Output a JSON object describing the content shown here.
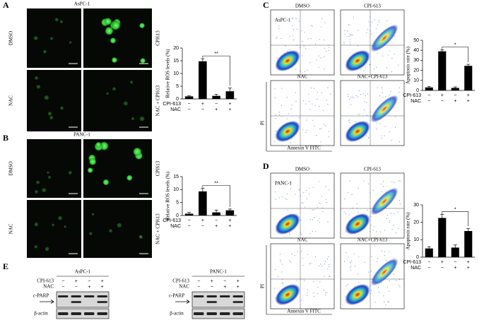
{
  "panels": {
    "A": {
      "label": "A",
      "cell_line": "AsPC-1",
      "rows": [
        "DMSO",
        "NAC"
      ],
      "treatments": [
        "CPI613",
        "NAC + CPI613"
      ]
    },
    "B": {
      "label": "B",
      "cell_line": "PANC-1",
      "rows": [
        "DMSO",
        "NAC"
      ],
      "treatments": [
        "CPI613",
        "NAC + CPI613"
      ]
    },
    "C": {
      "label": "C",
      "cell_line": "AsPC-1",
      "plots": [
        "DMSO",
        "CPI-613",
        "NAC",
        "NAC+CPI-613"
      ],
      "x_label": "Annexin V FITC",
      "y_label": "PI"
    },
    "D": {
      "label": "D",
      "cell_line": "PANC-1",
      "plots": [
        "DMSO",
        "CPI-613",
        "NAC",
        "NAC+CPI-613"
      ],
      "x_label": "Annexin V FITC",
      "y_label": "PI"
    },
    "E": {
      "label": "E",
      "blots": [
        {
          "cell_line": "AsPC-1",
          "conditions": [
            {
              "name": "CPI-613",
              "signs": [
                "−",
                "+",
                "−",
                "+"
              ]
            },
            {
              "name": "NAC",
              "signs": [
                "−",
                "−",
                "+",
                "+"
              ]
            }
          ],
          "bands": [
            "c-PARP",
            "β-actin"
          ]
        },
        {
          "cell_line": "PANC-1",
          "conditions": [
            {
              "name": "CPI-613",
              "signs": [
                "−",
                "+",
                "−",
                "+"
              ]
            },
            {
              "name": "NAC",
              "signs": [
                "−",
                "−",
                "+",
                "+"
              ]
            }
          ],
          "bands": [
            "c-PARP",
            "β-actin"
          ]
        }
      ]
    }
  },
  "chart_data": [
    {
      "type": "bar",
      "y_label": "Relative ROS levels (%)",
      "values": [
        1,
        14.8,
        1.2,
        3
      ],
      "errors": [
        0.2,
        1,
        0.6,
        1.3
      ],
      "color": "#000000",
      "ylim": [
        0,
        20
      ],
      "yticks": [
        0,
        5,
        10,
        15,
        20
      ],
      "annotation": "**",
      "conditions": [
        {
          "name": "CPI-613",
          "signs": [
            "−",
            "+",
            "−",
            "+"
          ]
        },
        {
          "name": "NAC",
          "signs": [
            "−",
            "−",
            "+",
            "+"
          ]
        }
      ]
    },
    {
      "type": "bar",
      "y_label": "Relative ROS levels (%)",
      "values": [
        0.7,
        9.3,
        1.2,
        2
      ],
      "errors": [
        0.5,
        1.2,
        0.9,
        0.5
      ],
      "color": "#000000",
      "ylim": [
        0,
        15
      ],
      "yticks": [
        0,
        5,
        10,
        15
      ],
      "annotation": "**",
      "conditions": [
        {
          "name": "CPI-613",
          "signs": [
            "−",
            "+",
            "−",
            "+"
          ]
        },
        {
          "name": "NAC",
          "signs": [
            "−",
            "−",
            "+",
            "+"
          ]
        }
      ]
    },
    {
      "type": "bar",
      "y_label": "Apoptosis rate (%)",
      "values": [
        3,
        39,
        2.5,
        24.5
      ],
      "errors": [
        1,
        1.5,
        1,
        1.5
      ],
      "color": "#000000",
      "ylim": [
        0,
        50
      ],
      "yticks": [
        0,
        10,
        20,
        30,
        40,
        50
      ],
      "annotation": "*",
      "conditions": [
        {
          "name": "CPI-613",
          "signs": [
            "−",
            "+",
            "−",
            "+"
          ]
        },
        {
          "name": "NAC",
          "signs": [
            "−",
            "−",
            "+",
            "+"
          ]
        }
      ]
    },
    {
      "type": "bar",
      "y_label": "Apoptosis rate (%)",
      "values": [
        5,
        22.5,
        5.5,
        15
      ],
      "errors": [
        1,
        2,
        1.5,
        1.5
      ],
      "color": "#000000",
      "ylim": [
        0,
        30
      ],
      "yticks": [
        0,
        10,
        20,
        30
      ],
      "annotation": "*",
      "conditions": [
        {
          "name": "CPI-613",
          "signs": [
            "−",
            "+",
            "−",
            "+"
          ]
        },
        {
          "name": "NAC",
          "signs": [
            "−",
            "−",
            "+",
            "+"
          ]
        }
      ]
    }
  ]
}
